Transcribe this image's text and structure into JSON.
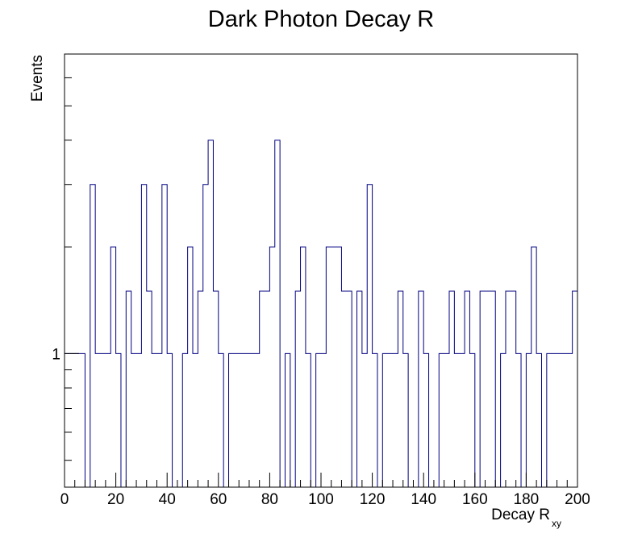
{
  "chart_data": {
    "type": "histogram",
    "title": "Dark Photon Decay R",
    "xlabel_main": "Decay R",
    "xlabel_sub": "xy",
    "ylabel": "Events",
    "xlim": [
      0,
      200
    ],
    "y_scale": "log",
    "ylim": [
      0.42,
      7.0
    ],
    "bin_width": 2,
    "x_tick_labels": [
      "0",
      "20",
      "40",
      "60",
      "80",
      "100",
      "120",
      "140",
      "160",
      "180",
      "200"
    ],
    "x_tick_values": [
      0,
      20,
      40,
      60,
      80,
      100,
      120,
      140,
      160,
      180,
      200
    ],
    "y_tick_labels": [
      "1"
    ],
    "y_tick_values": [
      1
    ],
    "line_color": "#000080",
    "bins": [
      {
        "lo": 0,
        "hi": 8,
        "count": 1
      },
      {
        "lo": 8,
        "hi": 10,
        "count": 0
      },
      {
        "lo": 10,
        "hi": 12,
        "count": 3
      },
      {
        "lo": 12,
        "hi": 18,
        "count": 1
      },
      {
        "lo": 18,
        "hi": 20,
        "count": 2
      },
      {
        "lo": 20,
        "hi": 22,
        "count": 1
      },
      {
        "lo": 22,
        "hi": 24,
        "count": 0
      },
      {
        "lo": 24,
        "hi": 26,
        "count": 1.5
      },
      {
        "lo": 26,
        "hi": 30,
        "count": 1
      },
      {
        "lo": 30,
        "hi": 32,
        "count": 3
      },
      {
        "lo": 32,
        "hi": 34,
        "count": 1.5
      },
      {
        "lo": 34,
        "hi": 38,
        "count": 1
      },
      {
        "lo": 38,
        "hi": 40,
        "count": 3
      },
      {
        "lo": 40,
        "hi": 42,
        "count": 1
      },
      {
        "lo": 42,
        "hi": 46,
        "count": 0
      },
      {
        "lo": 46,
        "hi": 48,
        "count": 1
      },
      {
        "lo": 48,
        "hi": 50,
        "count": 2
      },
      {
        "lo": 50,
        "hi": 52,
        "count": 1
      },
      {
        "lo": 52,
        "hi": 54,
        "count": 1.5
      },
      {
        "lo": 54,
        "hi": 56,
        "count": 3
      },
      {
        "lo": 56,
        "hi": 58,
        "count": 4
      },
      {
        "lo": 58,
        "hi": 60,
        "count": 1.5
      },
      {
        "lo": 60,
        "hi": 62,
        "count": 1
      },
      {
        "lo": 62,
        "hi": 64,
        "count": 0
      },
      {
        "lo": 64,
        "hi": 76,
        "count": 1
      },
      {
        "lo": 76,
        "hi": 80,
        "count": 1.5
      },
      {
        "lo": 80,
        "hi": 82,
        "count": 2
      },
      {
        "lo": 82,
        "hi": 84,
        "count": 4
      },
      {
        "lo": 84,
        "hi": 86,
        "count": 0
      },
      {
        "lo": 86,
        "hi": 88,
        "count": 1
      },
      {
        "lo": 88,
        "hi": 90,
        "count": 0
      },
      {
        "lo": 90,
        "hi": 92,
        "count": 1.5
      },
      {
        "lo": 92,
        "hi": 94,
        "count": 2
      },
      {
        "lo": 94,
        "hi": 96,
        "count": 1
      },
      {
        "lo": 96,
        "hi": 98,
        "count": 0
      },
      {
        "lo": 98,
        "hi": 102,
        "count": 1
      },
      {
        "lo": 102,
        "hi": 108,
        "count": 2
      },
      {
        "lo": 108,
        "hi": 112,
        "count": 1.5
      },
      {
        "lo": 112,
        "hi": 114,
        "count": 0
      },
      {
        "lo": 114,
        "hi": 116,
        "count": 1.5
      },
      {
        "lo": 116,
        "hi": 118,
        "count": 1
      },
      {
        "lo": 118,
        "hi": 120,
        "count": 3
      },
      {
        "lo": 120,
        "hi": 122,
        "count": 1
      },
      {
        "lo": 122,
        "hi": 124,
        "count": 0
      },
      {
        "lo": 124,
        "hi": 130,
        "count": 1
      },
      {
        "lo": 130,
        "hi": 132,
        "count": 1.5
      },
      {
        "lo": 132,
        "hi": 134,
        "count": 1
      },
      {
        "lo": 134,
        "hi": 138,
        "count": 0
      },
      {
        "lo": 138,
        "hi": 140,
        "count": 1.5
      },
      {
        "lo": 140,
        "hi": 142,
        "count": 1
      },
      {
        "lo": 142,
        "hi": 146,
        "count": 0
      },
      {
        "lo": 146,
        "hi": 150,
        "count": 1
      },
      {
        "lo": 150,
        "hi": 152,
        "count": 1.5
      },
      {
        "lo": 152,
        "hi": 156,
        "count": 1
      },
      {
        "lo": 156,
        "hi": 158,
        "count": 1.5
      },
      {
        "lo": 158,
        "hi": 160,
        "count": 1
      },
      {
        "lo": 160,
        "hi": 162,
        "count": 0
      },
      {
        "lo": 162,
        "hi": 168,
        "count": 1.5
      },
      {
        "lo": 168,
        "hi": 170,
        "count": 0
      },
      {
        "lo": 170,
        "hi": 172,
        "count": 1
      },
      {
        "lo": 172,
        "hi": 176,
        "count": 1.5
      },
      {
        "lo": 176,
        "hi": 178,
        "count": 1
      },
      {
        "lo": 178,
        "hi": 180,
        "count": 0
      },
      {
        "lo": 180,
        "hi": 182,
        "count": 1
      },
      {
        "lo": 182,
        "hi": 184,
        "count": 2
      },
      {
        "lo": 184,
        "hi": 186,
        "count": 1
      },
      {
        "lo": 186,
        "hi": 188,
        "count": 0
      },
      {
        "lo": 188,
        "hi": 198,
        "count": 1
      },
      {
        "lo": 198,
        "hi": 200,
        "count": 1.5
      }
    ]
  }
}
